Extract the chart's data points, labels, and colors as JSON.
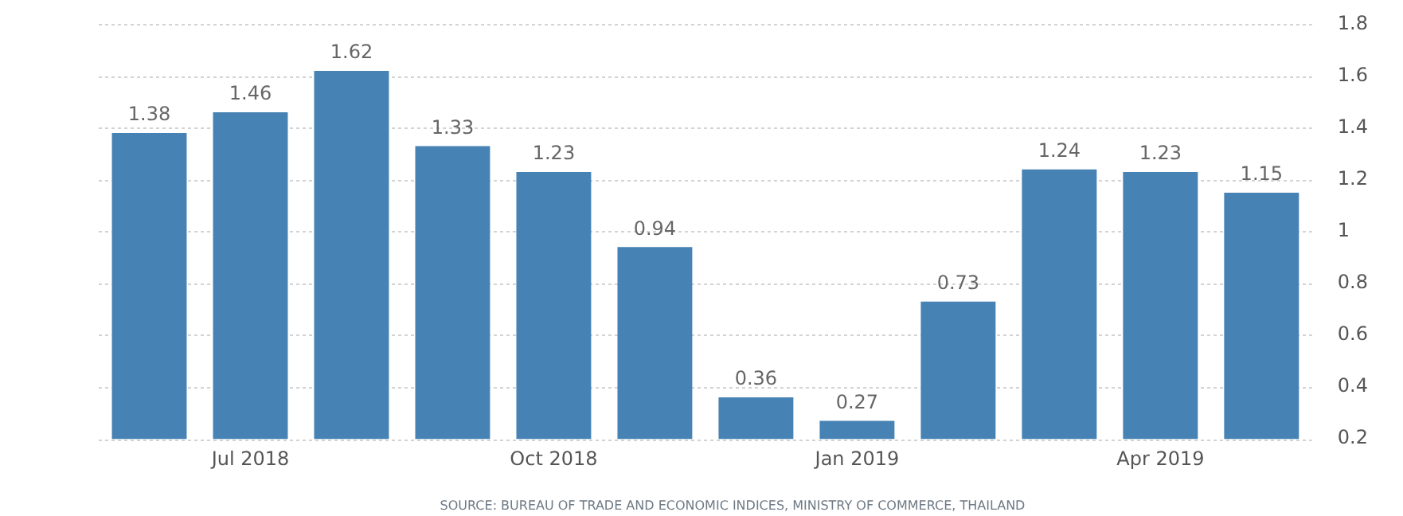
{
  "chart_data": {
    "type": "bar",
    "categories": [
      null,
      "Jul 2018",
      null,
      null,
      "Oct 2018",
      null,
      null,
      "Jan 2019",
      null,
      null,
      "Apr 2019",
      null
    ],
    "series": [
      {
        "color": "#4682b4",
        "axis": "y2",
        "values": [
          1.38,
          1.46,
          1.62,
          1.33,
          1.23,
          0.94,
          0.36,
          0.27,
          0.73,
          1.24,
          1.23,
          1.15
        ]
      }
    ],
    "y2lim": [
      0.2,
      1.8
    ],
    "y2ticks": [
      0.2,
      0.4,
      0.6,
      0.8,
      1,
      1.2,
      1.4,
      1.6,
      1.8
    ],
    "grid": "y",
    "legend": false,
    "data_labels": true,
    "annotations": [
      "SOURCE: BUREAU OF TRADE AND ECONOMIC INDICES, MINISTRY OF COMMERCE, THAILAND"
    ]
  }
}
